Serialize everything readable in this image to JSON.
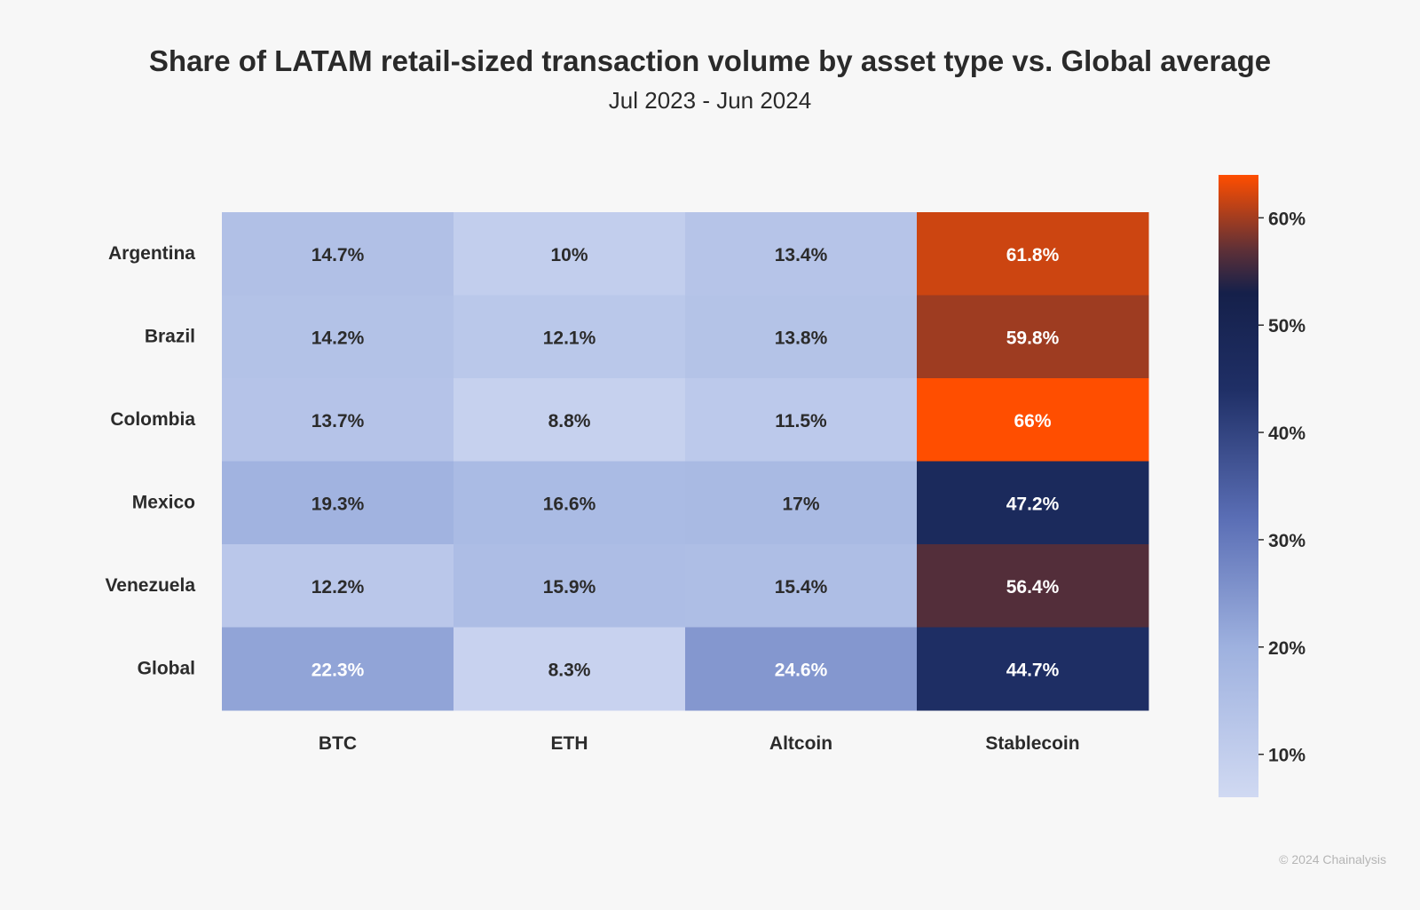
{
  "chart_data": {
    "type": "heatmap",
    "title": "Share of LATAM retail-sized transaction volume by asset type vs. Global average",
    "subtitle": "Jul 2023 - Jun 2024",
    "rows": [
      "Argentina",
      "Brazil",
      "Colombia",
      "Mexico",
      "Venezuela",
      "Global"
    ],
    "columns": [
      "BTC",
      "ETH",
      "Altcoin",
      "Stablecoin"
    ],
    "values": [
      [
        14.7,
        10,
        13.4,
        61.8
      ],
      [
        14.2,
        12.1,
        13.8,
        59.8
      ],
      [
        13.7,
        8.8,
        11.5,
        66
      ],
      [
        19.3,
        16.6,
        17,
        47.2
      ],
      [
        12.2,
        15.9,
        15.4,
        56.4
      ],
      [
        22.3,
        8.3,
        24.6,
        44.7
      ]
    ],
    "cell_labels": [
      [
        "14.7%",
        "10%",
        "13.4%",
        "61.8%"
      ],
      [
        "14.2%",
        "12.1%",
        "13.8%",
        "59.8%"
      ],
      [
        "13.7%",
        "8.8%",
        "11.5%",
        "66%"
      ],
      [
        "19.3%",
        "16.6%",
        "17%",
        "47.2%"
      ],
      [
        "12.2%",
        "15.9%",
        "15.4%",
        "56.4%"
      ],
      [
        "22.3%",
        "8.3%",
        "24.6%",
        "44.7%"
      ]
    ],
    "colorbar": {
      "range": [
        6,
        64
      ],
      "ticks": [
        10,
        20,
        30,
        40,
        50,
        60
      ],
      "tick_labels": [
        "10%",
        "20%",
        "30%",
        "40%",
        "50%",
        "60%"
      ],
      "stops": [
        {
          "value": 6,
          "color": "#d0d9f2"
        },
        {
          "value": 20,
          "color": "#9eb1df"
        },
        {
          "value": 32,
          "color": "#5a6eb5"
        },
        {
          "value": 44,
          "color": "#1f2f66"
        },
        {
          "value": 53,
          "color": "#15204a"
        },
        {
          "value": 57,
          "color": "#5e3037"
        },
        {
          "value": 64,
          "color": "#ff4e00"
        }
      ]
    }
  },
  "footer": {
    "copyright": "© 2024 Chainalysis"
  }
}
